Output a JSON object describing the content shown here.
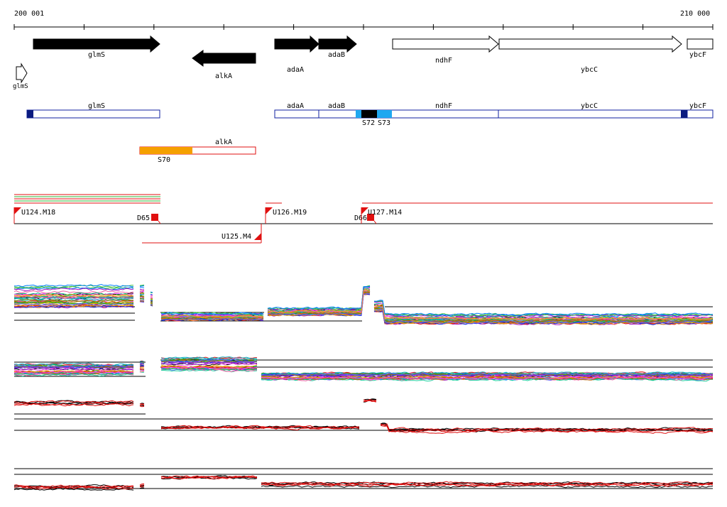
{
  "coordinate_axis": {
    "start_label": "200 001",
    "end_label": "210 000"
  },
  "genes": [
    {
      "name": "glmS",
      "strand": "+",
      "fill": "#000000",
      "label_pos": "below"
    },
    {
      "name": "alkA",
      "strand": "-",
      "fill": "#000000",
      "label_pos": "below"
    },
    {
      "name": "adaA",
      "strand": "+",
      "fill": "#000000",
      "label_pos": "below"
    },
    {
      "name": "adaB",
      "strand": "+",
      "fill": "#000000",
      "label_pos": "below"
    },
    {
      "name": "ndhF",
      "strand": "+",
      "fill": "#ffffff",
      "label_pos": "below"
    },
    {
      "name": "ybcC",
      "strand": "+",
      "fill": "#ffffff",
      "label_pos": "below"
    },
    {
      "name": "ybcF",
      "strand": "+",
      "fill": "#ffffff",
      "label_pos": "below"
    },
    {
      "name": "glmS",
      "strand": "+",
      "fill": "#ffffff",
      "label_pos": "below-small"
    }
  ],
  "transcripts_forward": [
    {
      "label": "glmS"
    },
    {
      "label": "adaA"
    },
    {
      "label": "adaB"
    },
    {
      "label": "ndhF"
    },
    {
      "label": "ybcC"
    },
    {
      "label": "ybcF"
    }
  ],
  "forward_features": [
    {
      "label": "S72"
    },
    {
      "label": "S73"
    }
  ],
  "transcripts_reverse": [
    {
      "label": "alkA"
    }
  ],
  "reverse_features": [
    {
      "label": "S70"
    }
  ],
  "segments": [
    {
      "label": "U124.M18"
    },
    {
      "label": "D65"
    },
    {
      "label": "U126.M19"
    },
    {
      "label": "D66"
    },
    {
      "label": "U127.M14"
    },
    {
      "label": "U125.M4"
    }
  ],
  "colors": {
    "transcript_outline": "#1020a0",
    "transcript_dark": "#0a1a80",
    "transcript_light": "#20a8f0",
    "reverse_outline": "#e01010",
    "reverse_feature": "#f5a000",
    "segment": "#e01010",
    "axis": "#000000"
  },
  "expression_panels": [
    {
      "name": "forward-tiling-all-conditions"
    },
    {
      "name": "reverse-tiling-all-conditions"
    },
    {
      "name": "forward-tiling-selected"
    },
    {
      "name": "reverse-tiling-selected"
    }
  ]
}
